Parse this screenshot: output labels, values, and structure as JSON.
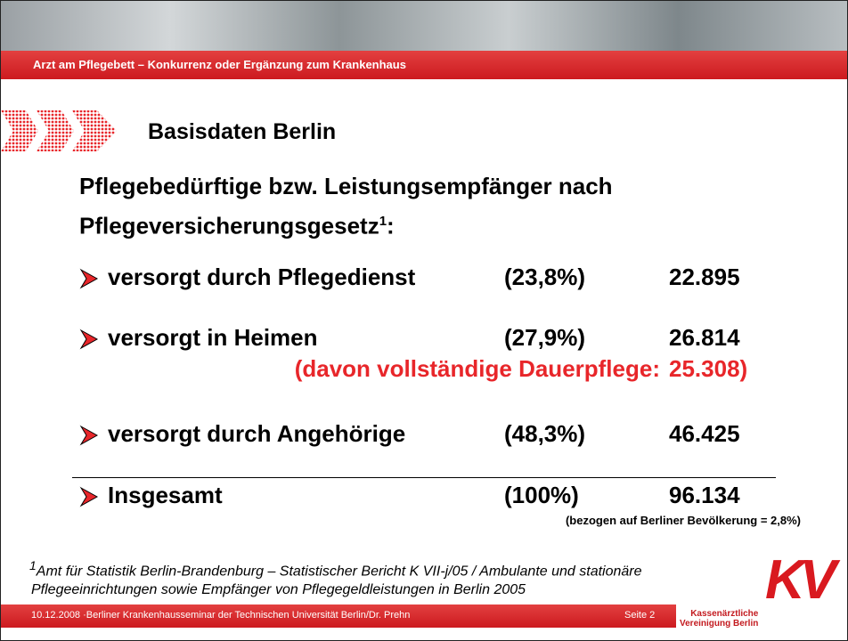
{
  "header": {
    "title": "Arzt am Pflegebett – Konkurrenz oder Ergänzung zum Krankenhaus"
  },
  "section_title": "Basisdaten Berlin",
  "heading": {
    "text": "Pflegebedürftige bzw. Leistungsempfänger nach Pflegeversicherungsgesetz",
    "note_ref": "1",
    "end": ":"
  },
  "rows": [
    {
      "label": "versorgt durch Pflegedienst",
      "share": "(23,8%)",
      "count": "22.895"
    },
    {
      "label": "versorgt in Heimen",
      "share": "(27,9%)",
      "count": "26.814",
      "sub_label": "(davon vollständige Dauerpflege:",
      "sub_count": "25.308)"
    },
    {
      "label": "versorgt durch Angehörige",
      "share": "(48,3%)",
      "count": "46.425"
    }
  ],
  "total": {
    "label": "Insgesamt",
    "share": "(100%)",
    "count": "96.134",
    "note": "(bezogen auf Berliner Bevölkerung = 2,8%)"
  },
  "footnote": {
    "marker": "1",
    "lines": [
      "Amt für Statistik Berlin-Brandenburg – Statistischer Bericht K VII-j/05 / Ambulante und stationäre",
      "Pflegeeinrichtungen sowie Empfänger von Pflegegeldleistungen in Berlin 2005"
    ]
  },
  "footer": {
    "text": "10.12.2008 ·Berliner Krankenhausseminar der Technischen Universität Berlin/Dr. Prehn",
    "page": "Seite 2",
    "logo_line1": "Kassenärztliche",
    "logo_line2": "Vereinigung Berlin",
    "logo_mark": "KV"
  }
}
